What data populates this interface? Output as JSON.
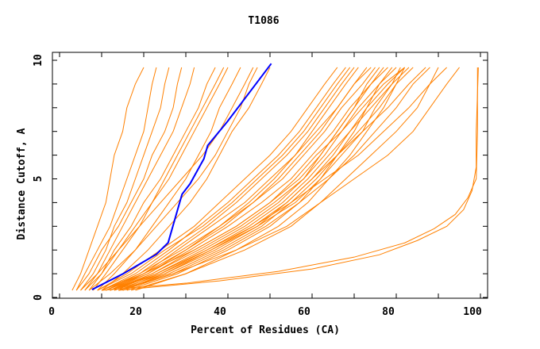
{
  "chart_data": {
    "type": "line",
    "title": "T1086",
    "xlabel": "Percent of Residues (CA)",
    "ylabel": "Distance Cutoff, A",
    "xlim": [
      0,
      100
    ],
    "ylim": [
      0,
      10
    ],
    "xticks": [
      "0",
      "20",
      "40",
      "60",
      "80",
      "100"
    ],
    "xtick_values": [
      0,
      20,
      40,
      60,
      80,
      100
    ],
    "yticks": [
      "0",
      "5",
      "10"
    ],
    "ytick_values": [
      0,
      5,
      10
    ],
    "grid": false,
    "colors": {
      "others": "#ff8000",
      "highlight": "#0000ff"
    },
    "default_y": [
      0.3,
      1,
      2,
      3,
      4,
      5,
      6,
      7,
      8,
      9,
      9.7
    ],
    "series": [
      {
        "x": [
          3,
          5,
          7,
          9,
          11,
          12,
          13,
          15,
          16,
          18,
          20
        ]
      },
      {
        "x": [
          4,
          6,
          9,
          12,
          14,
          16,
          18,
          20,
          21,
          22,
          23
        ]
      },
      {
        "x": [
          5,
          8,
          11,
          13,
          16,
          18,
          20,
          22,
          24,
          25,
          26
        ]
      },
      {
        "x": [
          6,
          9,
          12,
          15,
          18,
          21,
          24,
          27,
          29,
          31,
          32
        ]
      },
      {
        "x": [
          7,
          10,
          13,
          17,
          20,
          24,
          27,
          30,
          33,
          35,
          37
        ]
      },
      {
        "x": [
          4,
          7,
          10,
          14,
          17,
          20,
          22,
          25,
          27,
          28,
          29
        ]
      },
      {
        "x": [
          8,
          11,
          15,
          19,
          22,
          26,
          29,
          32,
          35,
          38,
          40
        ]
      },
      {
        "x": [
          6,
          10,
          14,
          18,
          22,
          25,
          28,
          31,
          34,
          37,
          39
        ]
      },
      {
        "x": [
          9,
          13,
          18,
          22,
          26,
          30,
          33,
          36,
          38,
          41,
          43
        ]
      },
      {
        "x": [
          5,
          9,
          14,
          19,
          24,
          29,
          34,
          38,
          41,
          44,
          46
        ]
      },
      {
        "x": [
          10,
          15,
          21,
          26,
          31,
          35,
          38,
          41,
          45,
          48,
          50
        ]
      },
      {
        "x": [
          7,
          12,
          18,
          23,
          28,
          33,
          37,
          40,
          43,
          45,
          47
        ]
      },
      {
        "x": [
          9,
          16,
          24,
          32,
          38,
          44,
          50,
          55,
          59,
          63,
          66
        ]
      },
      {
        "x": [
          10,
          18,
          26,
          33,
          40,
          46,
          52,
          57,
          61,
          65,
          68
        ]
      },
      {
        "x": [
          11,
          19,
          27,
          35,
          42,
          48,
          54,
          59,
          63,
          67,
          70
        ]
      },
      {
        "x": [
          12,
          20,
          28,
          36,
          44,
          50,
          56,
          61,
          66,
          70,
          73
        ]
      },
      {
        "x": [
          10,
          19,
          29,
          38,
          46,
          53,
          58,
          63,
          67,
          72,
          75
        ]
      },
      {
        "x": [
          12,
          21,
          31,
          40,
          48,
          55,
          60,
          65,
          69,
          74,
          78
        ]
      },
      {
        "x": [
          11,
          21,
          30,
          39,
          46,
          52,
          57,
          62,
          66,
          70,
          74
        ]
      },
      {
        "x": [
          13,
          22,
          32,
          42,
          50,
          57,
          62,
          66,
          70,
          74,
          77
        ]
      },
      {
        "x": [
          12,
          22,
          33,
          43,
          51,
          58,
          63,
          67,
          71,
          76,
          80
        ]
      },
      {
        "x": [
          14,
          24,
          35,
          45,
          53,
          59,
          64,
          69,
          73,
          78,
          82
        ]
      },
      {
        "x": [
          13,
          23,
          34,
          44,
          52,
          58,
          62,
          66,
          70,
          73,
          76
        ]
      },
      {
        "x": [
          15,
          25,
          36,
          46,
          54,
          60,
          66,
          71,
          76,
          80,
          84
        ]
      },
      {
        "x": [
          9,
          17,
          25,
          34,
          41,
          47,
          53,
          58,
          62,
          66,
          69
        ]
      },
      {
        "x": [
          11,
          20,
          30,
          38,
          45,
          51,
          56,
          60,
          64,
          68,
          71
        ]
      },
      {
        "x": [
          14,
          26,
          38,
          48,
          55,
          61,
          66,
          72,
          78,
          83,
          87
        ]
      },
      {
        "x": [
          12,
          24,
          36,
          47,
          56,
          62,
          67,
          72,
          75,
          79,
          81
        ]
      },
      {
        "x": [
          16,
          28,
          40,
          50,
          57,
          62,
          66,
          70,
          73,
          76,
          79
        ]
      },
      {
        "x": [
          10,
          20,
          32,
          42,
          50,
          56,
          61,
          67,
          72,
          77,
          82
        ]
      },
      {
        "x": [
          15,
          27,
          39,
          49,
          57,
          64,
          70,
          75,
          80,
          84,
          88
        ]
      },
      {
        "x": [
          13,
          25,
          37,
          47,
          54,
          60,
          65,
          69,
          74,
          79,
          83
        ]
      },
      {
        "x": [
          17,
          30,
          44,
          55,
          62,
          68,
          74,
          80,
          85,
          88,
          90
        ]
      },
      {
        "x": [
          14,
          27,
          42,
          54,
          62,
          70,
          78,
          84,
          88,
          92,
          95
        ]
      },
      {
        "x": [
          18,
          30,
          42,
          52,
          59,
          64,
          69,
          73,
          77,
          80,
          82
        ]
      },
      {
        "x": [
          12,
          23,
          35,
          46,
          55,
          63,
          71,
          77,
          83,
          88,
          92
        ]
      },
      {
        "x": [
          14,
          38,
          60,
          76,
          85,
          92,
          96,
          98,
          99,
          99,
          99.5
        ],
        "y": [
          0.3,
          0.7,
          1.2,
          1.8,
          2.4,
          3.0,
          3.7,
          4.5,
          5.5,
          7,
          9.7
        ]
      },
      {
        "x": [
          10,
          30,
          52,
          70,
          82,
          89,
          94,
          97,
          99,
          99.3,
          99.3
        ],
        "y": [
          0.3,
          0.6,
          1.1,
          1.7,
          2.3,
          2.9,
          3.5,
          4.2,
          5,
          7,
          9.7
        ]
      }
    ],
    "highlight": {
      "x": [
        7.7,
        15.1,
        23.0,
        25.8,
        29.1,
        31.0,
        34.3,
        35.2,
        39.9,
        50.3
      ],
      "y": [
        0.33,
        1.0,
        1.82,
        2.31,
        4.35,
        4.79,
        5.85,
        6.41,
        7.42,
        9.86
      ]
    }
  }
}
